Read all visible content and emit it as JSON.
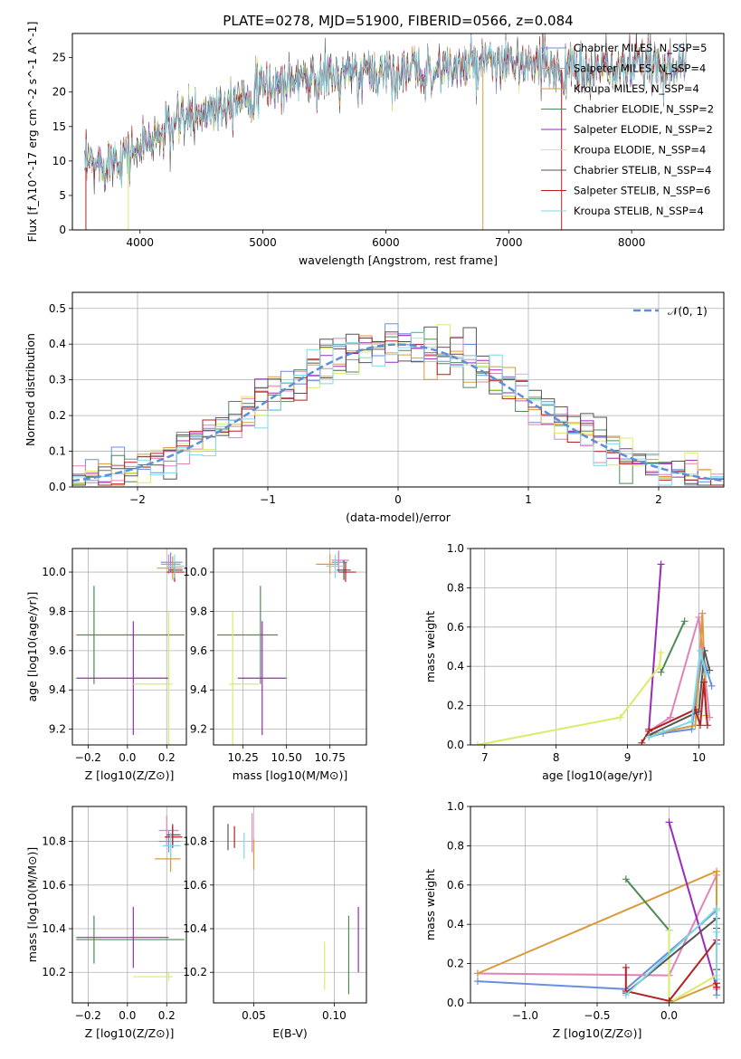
{
  "figure": {
    "title": "PLATE=0278, MJD=51900, FIBERID=0566, z=0.084"
  },
  "colors": {
    "chabrier_miles": "#6a8fdc",
    "salpeter_miles": "#e083b8",
    "kroupa_miles": "#d99a3a",
    "chabrier_elodie": "#4f8a57",
    "salpeter_elodie": "#9a2ab8",
    "kroupa_elodie": "#d9ec6a",
    "chabrier_stelib": "#555555",
    "salpeter_stelib": "#b22222",
    "kroupa_stelib": "#7fd8e6",
    "normal_curve": "#5b8fd6",
    "grid": "#b0b0b0"
  },
  "chart_data": [
    {
      "id": "spectrum",
      "type": "line",
      "xlabel": "wavelength [Angstrom, rest frame]",
      "ylabel": "Flux [f_λ10^-17 erg cm^-2 s^-1 A^-1]",
      "xlim": [
        3450,
        8750
      ],
      "ylim": [
        0,
        28.5
      ],
      "xticks": [
        4000,
        5000,
        6000,
        7000,
        8000
      ],
      "yticks": [
        0,
        5,
        10,
        15,
        20,
        25
      ],
      "grid": false,
      "legend_position": "top-right",
      "legend": [
        {
          "label": "Chabrier MILES, N_SSP=5",
          "color_key": "chabrier_miles"
        },
        {
          "label": "Salpeter MILES, N_SSP=4",
          "color_key": "salpeter_miles"
        },
        {
          "label": "Kroupa MILES, N_SSP=4",
          "color_key": "kroupa_miles"
        },
        {
          "label": "Chabrier ELODIE, N_SSP=2",
          "color_key": "chabrier_elodie"
        },
        {
          "label": "Salpeter ELODIE, N_SSP=2",
          "color_key": "salpeter_elodie"
        },
        {
          "label": "Kroupa ELODIE, N_SSP=4",
          "color_key": "kroupa_elodie"
        },
        {
          "label": "Chabrier STELIB, N_SSP=4",
          "color_key": "chabrier_stelib"
        },
        {
          "label": "Salpeter STELIB, N_SSP=6",
          "color_key": "salpeter_stelib"
        },
        {
          "label": "Kroupa STELIB, N_SSP=4",
          "color_key": "kroupa_stelib"
        }
      ],
      "continuum": {
        "x": [
          3550,
          3700,
          3900,
          4000,
          4300,
          4700,
          5000,
          5300,
          5700,
          6000,
          6300,
          6600,
          7000,
          7300,
          7600,
          8000,
          8300,
          8450
        ],
        "y": [
          9,
          10,
          11,
          12,
          15.5,
          18.5,
          20.5,
          22,
          22.5,
          23,
          23,
          23.5,
          24,
          23.5,
          23,
          23.5,
          24,
          24
        ]
      }
    },
    {
      "id": "residuals",
      "type": "histogram",
      "xlabel": "(data-model)/error",
      "ylabel": "Normed distribution",
      "xlim": [
        -2.5,
        2.5
      ],
      "ylim": [
        0,
        0.545
      ],
      "xticks": [
        -2,
        -1,
        0,
        1,
        2
      ],
      "yticks": [
        0.0,
        0.1,
        0.2,
        0.3,
        0.4,
        0.5
      ],
      "grid": true,
      "legend_position": "top-right",
      "legend": [
        {
          "label": "𝒩(0, 1)",
          "color_key": "normal_curve",
          "style": "dashed"
        }
      ],
      "bin_width": 0.1,
      "reference_curve": "normal(0,1)"
    },
    {
      "id": "age_vs_Z",
      "type": "errorbar",
      "xlabel": "Z [log10(Z/Z⊙)]",
      "ylabel": "age [log10(age/yr)]",
      "xlim": [
        -0.28,
        0.3
      ],
      "ylim": [
        9.12,
        10.12
      ],
      "xticks": [
        -0.2,
        0.0,
        0.2
      ],
      "yticks": [
        9.2,
        9.4,
        9.6,
        9.8,
        10.0
      ],
      "grid": true,
      "points": [
        {
          "series": "chabrier_miles",
          "x": 0.22,
          "y": 10.05,
          "xerr": [
            0.05,
            0.06
          ],
          "yerr": 0.05
        },
        {
          "series": "salpeter_miles",
          "x": 0.21,
          "y": 10.04,
          "xerr": [
            0.04,
            0.06
          ],
          "yerr": 0.05
        },
        {
          "series": "kroupa_miles",
          "x": 0.23,
          "y": 10.02,
          "xerr": [
            0.08,
            0.05
          ],
          "yerr": 0.06
        },
        {
          "series": "chabrier_elodie",
          "x": -0.17,
          "y": 9.68,
          "xerr": [
            0.09,
            0.46
          ],
          "yerr": 0.25
        },
        {
          "series": "salpeter_elodie",
          "x": 0.03,
          "y": 9.46,
          "xerr": [
            0.29,
            0.18
          ],
          "yerr": 0.29
        },
        {
          "series": "kroupa_elodie",
          "x": 0.21,
          "y": 9.43,
          "xerr": [
            0.18,
            0.02
          ],
          "yerr": 0.37
        },
        {
          "series": "chabrier_stelib",
          "x": 0.24,
          "y": 10.01,
          "xerr": [
            0.03,
            0.04
          ],
          "yerr": 0.04
        },
        {
          "series": "salpeter_stelib",
          "x": 0.24,
          "y": 10.0,
          "xerr": [
            0.04,
            0.05
          ],
          "yerr": 0.05
        },
        {
          "series": "kroupa_stelib",
          "x": 0.24,
          "y": 10.03,
          "xerr": [
            0.04,
            0.05
          ],
          "yerr": 0.06
        }
      ]
    },
    {
      "id": "age_vs_mass",
      "type": "errorbar",
      "xlabel": "mass [log10(M/M⊙)]",
      "ylabel": "",
      "xlim": [
        10.08,
        10.96
      ],
      "ylim": [
        9.12,
        10.12
      ],
      "xticks": [
        10.25,
        10.5,
        10.75
      ],
      "xticklabels": [
        "10.25",
        "10.50",
        "10.75"
      ],
      "yticks": [
        9.2,
        9.4,
        9.6,
        9.8,
        10.0
      ],
      "grid": true,
      "points": [
        {
          "series": "chabrier_miles",
          "x": 10.8,
          "y": 10.05,
          "xerr": [
            0.04,
            0.05
          ],
          "yerr": 0.05
        },
        {
          "series": "salpeter_miles",
          "x": 10.8,
          "y": 10.06,
          "xerr": [
            0.04,
            0.06
          ],
          "yerr": 0.05
        },
        {
          "series": "kroupa_miles",
          "x": 10.75,
          "y": 10.04,
          "xerr": [
            0.08,
            0.05
          ],
          "yerr": 0.05
        },
        {
          "series": "chabrier_elodie",
          "x": 10.35,
          "y": 9.68,
          "xerr": [
            0.25,
            0.1
          ],
          "yerr": 0.25
        },
        {
          "series": "salpeter_elodie",
          "x": 10.36,
          "y": 9.46,
          "xerr": [
            0.14,
            0.14
          ],
          "yerr": 0.29
        },
        {
          "series": "kroupa_elodie",
          "x": 10.19,
          "y": 9.43,
          "xerr": [
            0.02,
            0.15
          ],
          "yerr": 0.37
        },
        {
          "series": "chabrier_stelib",
          "x": 10.83,
          "y": 10.01,
          "xerr": [
            0.04,
            0.04
          ],
          "yerr": 0.05
        },
        {
          "series": "salpeter_stelib",
          "x": 10.84,
          "y": 10.0,
          "xerr": [
            0.04,
            0.06
          ],
          "yerr": 0.05
        },
        {
          "series": "kroupa_stelib",
          "x": 10.78,
          "y": 10.03,
          "xerr": [
            0.05,
            0.05
          ],
          "yerr": 0.06
        }
      ]
    },
    {
      "id": "weight_vs_age",
      "type": "line",
      "xlabel": "age [log10(age/yr)]",
      "ylabel": "mass weight",
      "xlim": [
        6.8,
        10.35
      ],
      "ylim": [
        0.0,
        1.0
      ],
      "xticks": [
        7,
        8,
        9,
        10
      ],
      "yticks": [
        0.0,
        0.2,
        0.4,
        0.6,
        0.8,
        1.0
      ],
      "grid": true,
      "series": [
        {
          "name": "Chabrier MILES, N_SSP=5",
          "color_key": "chabrier_miles",
          "x": [
            9.3,
            9.5,
            9.9,
            10.05,
            10.18
          ],
          "y": [
            0.04,
            0.06,
            0.08,
            0.46,
            0.3
          ]
        },
        {
          "name": "Salpeter MILES, N_SSP=4",
          "color_key": "salpeter_miles",
          "x": [
            9.3,
            9.6,
            10.0,
            10.15
          ],
          "y": [
            0.07,
            0.14,
            0.65,
            0.14
          ]
        },
        {
          "name": "Kroupa MILES, N_SSP=4",
          "color_key": "kroupa_miles",
          "x": [
            9.3,
            9.95,
            10.05,
            10.1
          ],
          "y": [
            0.05,
            0.1,
            0.67,
            0.15
          ]
        },
        {
          "name": "Chabrier ELODIE, N_SSP=2",
          "color_key": "chabrier_elodie",
          "x": [
            9.47,
            9.8
          ],
          "y": [
            0.37,
            0.63
          ]
        },
        {
          "name": "Salpeter ELODIE, N_SSP=2",
          "color_key": "salpeter_elodie",
          "x": [
            9.3,
            9.47
          ],
          "y": [
            0.08,
            0.92
          ]
        },
        {
          "name": "Kroupa ELODIE, N_SSP=4",
          "color_key": "kroupa_elodie",
          "x": [
            6.9,
            8.9,
            9.45,
            9.47
          ],
          "y": [
            0.0,
            0.14,
            0.4,
            0.47
          ]
        },
        {
          "name": "Chabrier STELIB, N_SSP=4",
          "color_key": "chabrier_stelib",
          "x": [
            9.3,
            10.0,
            10.08,
            10.15
          ],
          "y": [
            0.05,
            0.17,
            0.48,
            0.38
          ]
        },
        {
          "name": "Salpeter STELIB, N_SSP=6",
          "color_key": "salpeter_stelib",
          "x": [
            9.2,
            9.3,
            9.95,
            10.02,
            10.07,
            10.12
          ],
          "y": [
            0.01,
            0.07,
            0.18,
            0.1,
            0.32,
            0.1
          ]
        },
        {
          "name": "Kroupa STELIB, N_SSP=4",
          "color_key": "kroupa_stelib",
          "x": [
            9.3,
            9.9,
            10.02,
            10.1
          ],
          "y": [
            0.04,
            0.12,
            0.48,
            0.36
          ]
        }
      ]
    },
    {
      "id": "mass_vs_Z",
      "type": "errorbar",
      "xlabel": "Z [log10(Z/Z⊙)]",
      "ylabel": "mass [log10(M/M⊙)]",
      "xlim": [
        -0.28,
        0.3
      ],
      "ylim": [
        10.06,
        10.96
      ],
      "xticks": [
        -0.2,
        0.0,
        0.2
      ],
      "yticks": [
        10.2,
        10.4,
        10.6,
        10.8
      ],
      "grid": true,
      "points": [
        {
          "series": "chabrier_miles",
          "x": 0.21,
          "y": 10.8,
          "xerr": [
            0.05,
            0.06
          ],
          "yerr": 0.05
        },
        {
          "series": "salpeter_miles",
          "x": 0.2,
          "y": 10.85,
          "xerr": [
            0.04,
            0.06
          ],
          "yerr": 0.07
        },
        {
          "series": "kroupa_miles",
          "x": 0.22,
          "y": 10.72,
          "xerr": [
            0.08,
            0.05
          ],
          "yerr": 0.06
        },
        {
          "series": "chabrier_elodie",
          "x": -0.17,
          "y": 10.35,
          "xerr": [
            0.09,
            0.46
          ],
          "yerr": 0.11
        },
        {
          "series": "salpeter_elodie",
          "x": 0.03,
          "y": 10.36,
          "xerr": [
            0.29,
            0.18
          ],
          "yerr": 0.14
        },
        {
          "series": "kroupa_elodie",
          "x": 0.21,
          "y": 10.18,
          "xerr": [
            0.18,
            0.02
          ],
          "yerr": 0.02
        },
        {
          "series": "chabrier_stelib",
          "x": 0.23,
          "y": 10.83,
          "xerr": [
            0.03,
            0.04
          ],
          "yerr": 0.05
        },
        {
          "series": "salpeter_stelib",
          "x": 0.23,
          "y": 10.82,
          "xerr": [
            0.04,
            0.05
          ],
          "yerr": 0.05
        },
        {
          "series": "kroupa_stelib",
          "x": 0.22,
          "y": 10.78,
          "xerr": [
            0.04,
            0.05
          ],
          "yerr": 0.06
        }
      ]
    },
    {
      "id": "mass_vs_ebv",
      "type": "errorbar",
      "xlabel": "E(B-V)",
      "ylabel": "",
      "xlim": [
        0.025,
        0.12
      ],
      "ylim": [
        10.06,
        10.96
      ],
      "xticks": [
        0.05,
        0.1
      ],
      "xticklabels": [
        "0.05",
        "0.10"
      ],
      "yticks": [
        10.2,
        10.4,
        10.6,
        10.8
      ],
      "grid": true,
      "points": [
        {
          "series": "chabrier_stelib",
          "x": 0.034,
          "y": 10.82,
          "yerr": 0.06
        },
        {
          "series": "salpeter_stelib",
          "x": 0.038,
          "y": 10.82,
          "yerr": 0.05
        },
        {
          "series": "kroupa_stelib",
          "x": 0.044,
          "y": 10.78,
          "yerr": 0.06
        },
        {
          "series": "salpeter_miles",
          "x": 0.049,
          "y": 10.84,
          "yerr": 0.09
        },
        {
          "series": "kroupa_miles",
          "x": 0.05,
          "y": 10.74,
          "yerr": 0.07
        },
        {
          "series": "kroupa_elodie",
          "x": 0.094,
          "y": 10.23,
          "yerr": 0.11
        },
        {
          "series": "chabrier_elodie",
          "x": 0.109,
          "y": 10.28,
          "yerr": 0.18
        },
        {
          "series": "salpeter_elodie",
          "x": 0.115,
          "y": 10.35,
          "yerr": 0.15
        }
      ]
    },
    {
      "id": "weight_vs_Z",
      "type": "line",
      "xlabel": "Z [log10(Z/Z⊙)]",
      "ylabel": "mass weight",
      "xlim": [
        -1.38,
        0.38
      ],
      "ylim": [
        0.0,
        1.0
      ],
      "xticks": [
        -1.0,
        -0.5,
        0.0
      ],
      "xticklabels": [
        "−1.0",
        "−0.5",
        "0.0"
      ],
      "yticks": [
        0.0,
        0.2,
        0.4,
        0.6,
        0.8,
        1.0
      ],
      "grid": true,
      "series": [
        {
          "name": "Chabrier MILES, N_SSP=5",
          "color_key": "chabrier_miles",
          "x": [
            -1.33,
            -0.3,
            0.33,
            0.33,
            0.33
          ],
          "y": [
            0.11,
            0.07,
            0.47,
            0.3,
            0.04
          ]
        },
        {
          "name": "Salpeter MILES, N_SSP=4",
          "color_key": "salpeter_miles",
          "x": [
            -1.33,
            0.0,
            0.33,
            0.33
          ],
          "y": [
            0.15,
            0.14,
            0.65,
            0.07
          ]
        },
        {
          "name": "Kroupa MILES, N_SSP=4",
          "color_key": "kroupa_miles",
          "x": [
            -1.33,
            0.33,
            0.33,
            0.0
          ],
          "y": [
            0.15,
            0.67,
            0.1,
            0.0
          ]
        },
        {
          "name": "Chabrier ELODIE, N_SSP=2",
          "color_key": "chabrier_elodie",
          "x": [
            -0.3,
            0.0
          ],
          "y": [
            0.63,
            0.37
          ]
        },
        {
          "name": "Salpeter ELODIE, N_SSP=2",
          "color_key": "salpeter_elodie",
          "x": [
            0.0,
            0.33
          ],
          "y": [
            0.92,
            0.08
          ]
        },
        {
          "name": "Kroupa ELODIE, N_SSP=4",
          "color_key": "kroupa_elodie",
          "x": [
            0.0,
            0.0,
            0.33,
            0.33
          ],
          "y": [
            0.37,
            0.0,
            0.14,
            0.47
          ]
        },
        {
          "name": "Chabrier STELIB, N_SSP=4",
          "color_key": "chabrier_stelib",
          "x": [
            -0.3,
            0.33,
            0.33,
            0.33
          ],
          "y": [
            0.05,
            0.43,
            0.38,
            0.17
          ]
        },
        {
          "name": "Salpeter STELIB, N_SSP=6",
          "color_key": "salpeter_stelib",
          "x": [
            -0.3,
            -0.3,
            0.0,
            0.33,
            0.33,
            0.33
          ],
          "y": [
            0.18,
            0.06,
            0.01,
            0.32,
            0.1,
            0.08
          ]
        },
        {
          "name": "Kroupa STELIB, N_SSP=4",
          "color_key": "kroupa_stelib",
          "x": [
            -0.3,
            0.33,
            0.33,
            0.33
          ],
          "y": [
            0.04,
            0.48,
            0.36,
            0.12
          ]
        }
      ]
    }
  ]
}
